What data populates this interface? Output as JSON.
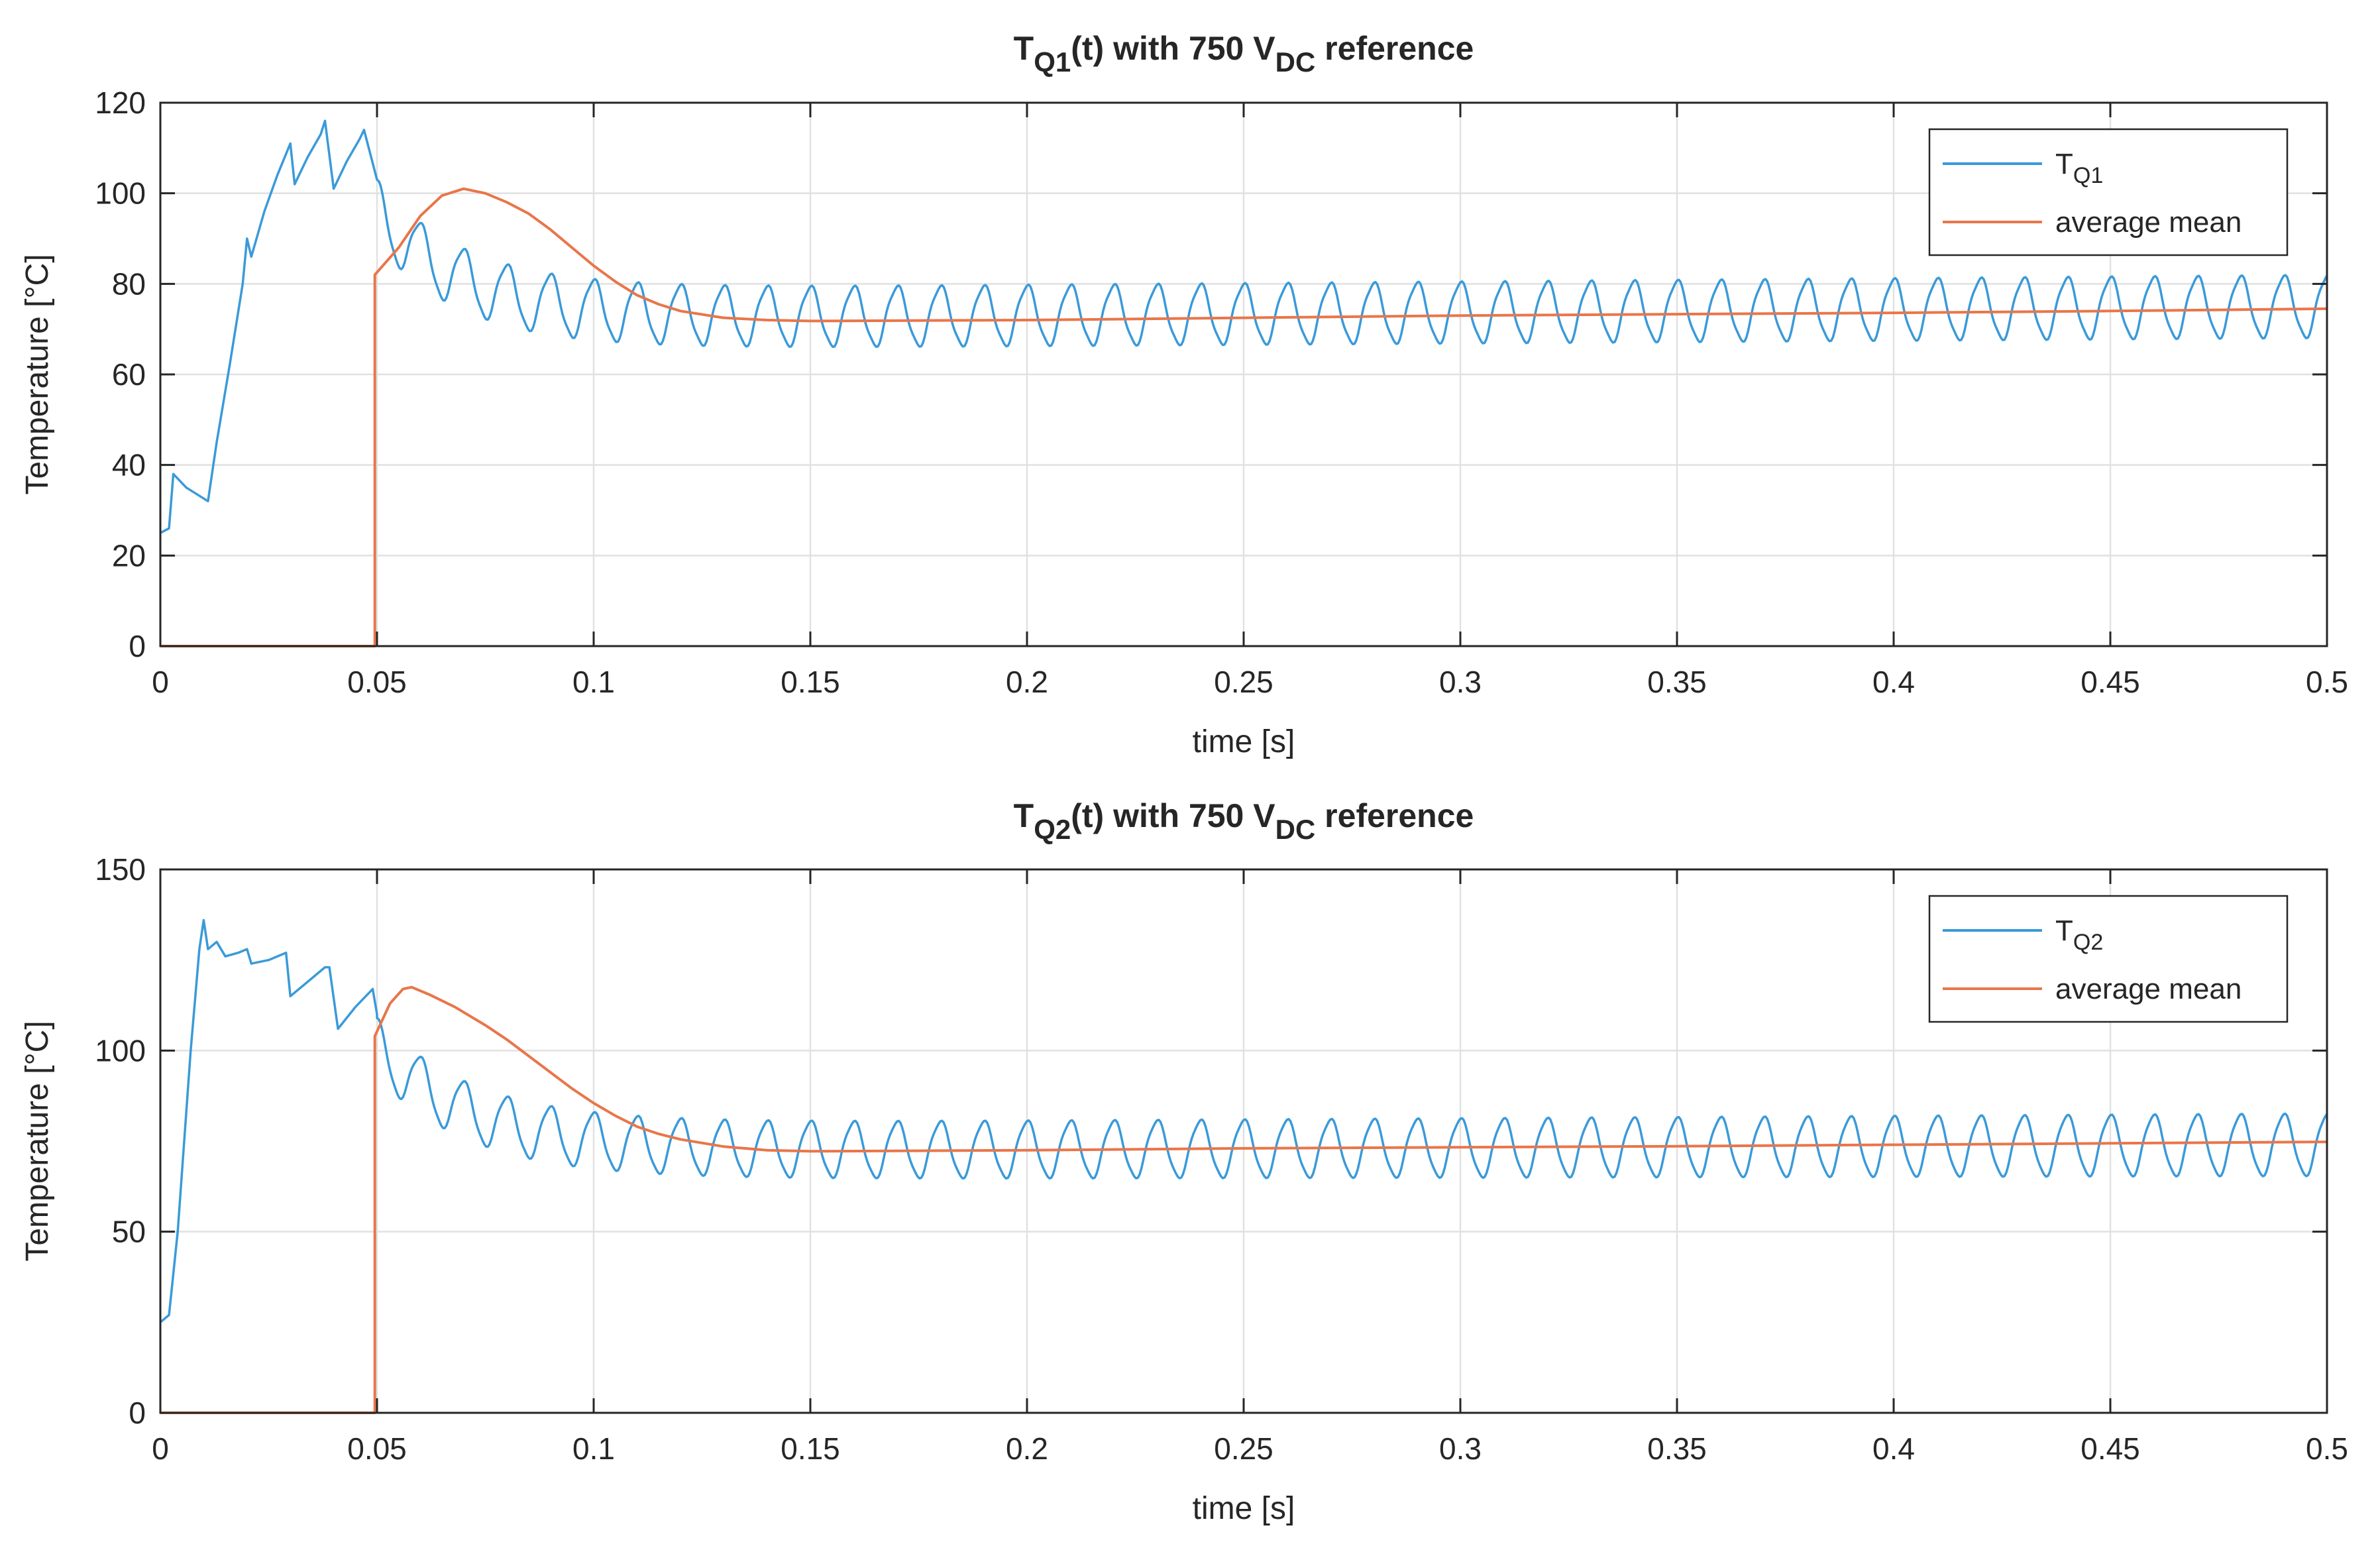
{
  "colors": {
    "series1": "#3a9ad9",
    "series2": "#e8764a",
    "grid": "#e1e1e1",
    "axis": "#262626"
  },
  "chart_data": [
    {
      "type": "line",
      "title": {
        "main": "T",
        "sub": "Q1",
        "mid": "(t) with 750 V",
        "sub2": "DC",
        "end": " reference"
      },
      "xlabel": "time [s]",
      "ylabel": "Temperature [°C]",
      "xlim": [
        0,
        0.5
      ],
      "ylim": [
        0,
        120
      ],
      "xticks": [
        0,
        0.05,
        0.1,
        0.15,
        0.2,
        0.25,
        0.3,
        0.35,
        0.4,
        0.45,
        0.5
      ],
      "xtick_labels": [
        "0",
        "0.05",
        "0.1",
        "0.15",
        "0.2",
        "0.25",
        "0.3",
        "0.35",
        "0.4",
        "0.45",
        "0.5"
      ],
      "yticks": [
        0,
        20,
        40,
        60,
        80,
        100,
        120
      ],
      "ytick_labels": [
        "0",
        "20",
        "40",
        "60",
        "80",
        "100",
        "120"
      ],
      "grid": true,
      "legend": {
        "placement": "top-right",
        "entries": [
          {
            "main": "T",
            "sub": "Q1"
          },
          {
            "main": "average mean",
            "sub": ""
          }
        ]
      },
      "series": [
        {
          "name": "T_Q1",
          "transient": [
            [
              0,
              25
            ],
            [
              0.002,
              26
            ],
            [
              0.003,
              38
            ],
            [
              0.006,
              35
            ],
            [
              0.011,
              32
            ],
            [
              0.013,
              45
            ],
            [
              0.016,
              62
            ],
            [
              0.019,
              80
            ],
            [
              0.02,
              90
            ],
            [
              0.021,
              86
            ],
            [
              0.024,
              96
            ],
            [
              0.027,
              104
            ],
            [
              0.03,
              111
            ],
            [
              0.031,
              102
            ],
            [
              0.034,
              108
            ],
            [
              0.037,
              113
            ],
            [
              0.038,
              116
            ],
            [
              0.04,
              101
            ],
            [
              0.043,
              107
            ],
            [
              0.046,
              112
            ],
            [
              0.047,
              114
            ],
            [
              0.05,
              103
            ]
          ],
          "osc": {
            "start": 0.05,
            "end": 0.5,
            "freq": 100,
            "mean_start": 96,
            "mean_final": 72,
            "mean_drift_end": 75,
            "tau": 0.02,
            "amp_start": 7,
            "amp_final": 6.5,
            "amp_drift_end": 6.8
          }
        },
        {
          "name": "average mean",
          "steps": [
            [
              0,
              0
            ],
            [
              0.049,
              0
            ],
            [
              0.0495,
              0
            ],
            [
              0.0495,
              82
            ]
          ],
          "curve": [
            [
              0.0495,
              82
            ],
            [
              0.055,
              88
            ],
            [
              0.06,
              95
            ],
            [
              0.065,
              99.5
            ],
            [
              0.07,
              101
            ],
            [
              0.075,
              100
            ],
            [
              0.08,
              98
            ],
            [
              0.085,
              95.5
            ],
            [
              0.09,
              92
            ],
            [
              0.095,
              88
            ],
            [
              0.1,
              84
            ],
            [
              0.105,
              80.5
            ],
            [
              0.11,
              77.5
            ],
            [
              0.115,
              75.5
            ],
            [
              0.12,
              74
            ],
            [
              0.13,
              72.5
            ],
            [
              0.14,
              72
            ],
            [
              0.15,
              71.8
            ],
            [
              0.2,
              72
            ],
            [
              0.25,
              72.5
            ],
            [
              0.3,
              73
            ],
            [
              0.35,
              73.3
            ],
            [
              0.4,
              73.6
            ],
            [
              0.45,
              74
            ],
            [
              0.5,
              74.5
            ]
          ]
        }
      ]
    },
    {
      "type": "line",
      "title": {
        "main": "T",
        "sub": "Q2",
        "mid": "(t) with 750 V",
        "sub2": "DC",
        "end": " reference"
      },
      "xlabel": "time [s]",
      "ylabel": "Temperature [°C]",
      "xlim": [
        0,
        0.5
      ],
      "ylim": [
        0,
        150
      ],
      "xticks": [
        0,
        0.05,
        0.1,
        0.15,
        0.2,
        0.25,
        0.3,
        0.35,
        0.4,
        0.45,
        0.5
      ],
      "xtick_labels": [
        "0",
        "0.05",
        "0.1",
        "0.15",
        "0.2",
        "0.25",
        "0.3",
        "0.35",
        "0.4",
        "0.45",
        "0.5"
      ],
      "yticks": [
        0,
        50,
        100,
        150
      ],
      "ytick_labels": [
        "0",
        "50",
        "100",
        "150"
      ],
      "grid": true,
      "legend": {
        "placement": "top-right",
        "entries": [
          {
            "main": "T",
            "sub": "Q2"
          },
          {
            "main": "average mean",
            "sub": ""
          }
        ]
      },
      "series": [
        {
          "name": "T_Q2",
          "transient": [
            [
              0,
              25
            ],
            [
              0.002,
              27
            ],
            [
              0.004,
              50
            ],
            [
              0.007,
              100
            ],
            [
              0.009,
              128
            ],
            [
              0.01,
              136
            ],
            [
              0.011,
              128
            ],
            [
              0.013,
              130
            ],
            [
              0.015,
              126
            ],
            [
              0.018,
              127
            ],
            [
              0.02,
              128
            ],
            [
              0.021,
              124
            ],
            [
              0.025,
              125
            ],
            [
              0.029,
              127
            ],
            [
              0.03,
              115
            ],
            [
              0.034,
              119
            ],
            [
              0.038,
              123
            ],
            [
              0.039,
              123
            ],
            [
              0.041,
              106
            ],
            [
              0.045,
              112
            ],
            [
              0.049,
              117
            ],
            [
              0.05,
              110
            ]
          ],
          "osc": {
            "start": 0.05,
            "end": 0.5,
            "freq": 100,
            "mean_start": 101,
            "mean_final": 72,
            "mean_drift_end": 74,
            "tau": 0.022,
            "amp_start": 8,
            "amp_final": 7.5,
            "amp_drift_end": 8.5
          }
        },
        {
          "name": "average mean",
          "steps": [
            [
              0,
              0
            ],
            [
              0.049,
              0
            ],
            [
              0.0495,
              0
            ],
            [
              0.0495,
              104
            ]
          ],
          "curve": [
            [
              0.0495,
              104
            ],
            [
              0.053,
              113
            ],
            [
              0.056,
              117
            ],
            [
              0.058,
              117.5
            ],
            [
              0.062,
              115.5
            ],
            [
              0.068,
              112
            ],
            [
              0.075,
              107
            ],
            [
              0.08,
              103
            ],
            [
              0.085,
              98.5
            ],
            [
              0.09,
              94
            ],
            [
              0.095,
              89.5
            ],
            [
              0.1,
              85.5
            ],
            [
              0.105,
              82
            ],
            [
              0.11,
              79
            ],
            [
              0.115,
              77
            ],
            [
              0.12,
              75.5
            ],
            [
              0.13,
              73.5
            ],
            [
              0.14,
              72.5
            ],
            [
              0.15,
              72.2
            ],
            [
              0.2,
              72.5
            ],
            [
              0.25,
              73
            ],
            [
              0.3,
              73.3
            ],
            [
              0.35,
              73.6
            ],
            [
              0.4,
              74
            ],
            [
              0.45,
              74.4
            ],
            [
              0.5,
              74.8
            ]
          ]
        }
      ]
    }
  ]
}
